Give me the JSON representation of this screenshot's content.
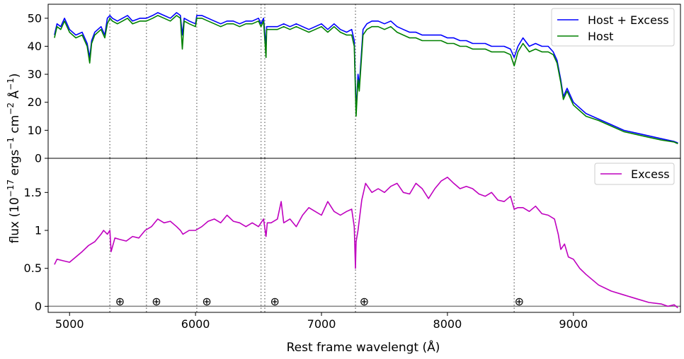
{
  "figure": {
    "ylabel": "flux (10$^{-17}$ ergs$^{-1}$ cm$^{-2}$ $\\AA^{-1}$)",
    "ylabel_parts": [
      "flux (10",
      "−17",
      " ergs",
      "−1",
      " cm",
      "−2",
      " Å",
      "−1",
      ")"
    ],
    "xlabel": "Rest frame wavelengt (Å)"
  },
  "colors": {
    "host_plus_excess": "#0000ff",
    "host": "#008000",
    "excess": "#bf00bf",
    "vline": "#808080",
    "zero_line": "#808080"
  },
  "chart_data": [
    {
      "type": "line",
      "panel": "top",
      "xlim": [
        4830,
        9850
      ],
      "ylim": [
        0,
        55
      ],
      "yticks": [
        0,
        10,
        20,
        30,
        40,
        50
      ],
      "ytick_labels": [
        "0",
        "10",
        "20",
        "30",
        "40",
        "50"
      ],
      "legend": {
        "placement": "top-right",
        "entries": [
          "Host + Excess",
          "Host"
        ]
      },
      "vlines": [
        5320,
        5610,
        6010,
        6520,
        6550,
        7270,
        8530
      ],
      "series": [
        {
          "name": "Host + Excess",
          "x": [
            4880,
            4900,
            4930,
            4960,
            5000,
            5050,
            5100,
            5140,
            5160,
            5175,
            5200,
            5250,
            5280,
            5300,
            5320,
            5340,
            5380,
            5420,
            5460,
            5500,
            5560,
            5610,
            5660,
            5700,
            5750,
            5800,
            5850,
            5880,
            5895,
            5910,
            5950,
            6000,
            6010,
            6050,
            6100,
            6150,
            6200,
            6250,
            6300,
            6350,
            6400,
            6450,
            6500,
            6520,
            6540,
            6560,
            6565,
            6600,
            6650,
            6700,
            6750,
            6800,
            6850,
            6900,
            6950,
            7000,
            7050,
            7100,
            7150,
            7200,
            7240,
            7260,
            7275,
            7290,
            7300,
            7330,
            7360,
            7400,
            7450,
            7500,
            7550,
            7600,
            7650,
            7700,
            7750,
            7800,
            7850,
            7900,
            7950,
            8000,
            8050,
            8100,
            8150,
            8200,
            8250,
            8300,
            8350,
            8400,
            8450,
            8500,
            8530,
            8560,
            8600,
            8650,
            8700,
            8750,
            8800,
            8840,
            8870,
            8900,
            8920,
            8950,
            9000,
            9050,
            9100,
            9200,
            9300,
            9400,
            9500,
            9600,
            9700,
            9800,
            9830
          ],
          "y": [
            44,
            48,
            47,
            50,
            46,
            44,
            45,
            41,
            36,
            42,
            45,
            47,
            44,
            50,
            51,
            50,
            49,
            50,
            51,
            49,
            50,
            50,
            51,
            52,
            51,
            50,
            52,
            51,
            44,
            50,
            49,
            48,
            51,
            51,
            50,
            49,
            48,
            49,
            49,
            48,
            49,
            49,
            50,
            48,
            50,
            40,
            47,
            47,
            47,
            48,
            47,
            48,
            47,
            46,
            47,
            48,
            46,
            48,
            46,
            45,
            46,
            42,
            17,
            30,
            26,
            46,
            48,
            49,
            49,
            48,
            49,
            47,
            46,
            45,
            45,
            44,
            44,
            44,
            44,
            43,
            43,
            42,
            42,
            41,
            41,
            41,
            40,
            40,
            40,
            39,
            36,
            40,
            43,
            40,
            41,
            40,
            40,
            38,
            35,
            28,
            22,
            25,
            20,
            18,
            16,
            14,
            12,
            10,
            9,
            8,
            7,
            6,
            5.5
          ]
        },
        {
          "name": "Host",
          "x": [
            4880,
            4900,
            4930,
            4960,
            5000,
            5050,
            5100,
            5140,
            5160,
            5175,
            5200,
            5250,
            5280,
            5300,
            5320,
            5340,
            5380,
            5420,
            5460,
            5500,
            5560,
            5610,
            5660,
            5700,
            5750,
            5800,
            5850,
            5880,
            5895,
            5910,
            5950,
            6000,
            6010,
            6050,
            6100,
            6150,
            6200,
            6250,
            6300,
            6350,
            6400,
            6450,
            6500,
            6520,
            6540,
            6560,
            6565,
            6600,
            6650,
            6700,
            6750,
            6800,
            6850,
            6900,
            6950,
            7000,
            7050,
            7100,
            7150,
            7200,
            7240,
            7260,
            7275,
            7290,
            7300,
            7330,
            7360,
            7400,
            7450,
            7500,
            7550,
            7600,
            7650,
            7700,
            7750,
            7800,
            7850,
            7900,
            7950,
            8000,
            8050,
            8100,
            8150,
            8200,
            8250,
            8300,
            8350,
            8400,
            8450,
            8500,
            8530,
            8560,
            8600,
            8650,
            8700,
            8750,
            8800,
            8840,
            8870,
            8900,
            8920,
            8950,
            9000,
            9050,
            9100,
            9200,
            9300,
            9400,
            9500,
            9600,
            9700,
            9800,
            9830
          ],
          "y": [
            43,
            47,
            46,
            49,
            45,
            43,
            44,
            40,
            34,
            41,
            44,
            46,
            43,
            48,
            50,
            49,
            48,
            49,
            50,
            48,
            49,
            49,
            50,
            51,
            50,
            49,
            51,
            50,
            39,
            49,
            48,
            47,
            50,
            50,
            49,
            48,
            47,
            48,
            48,
            47,
            48,
            48,
            49,
            47,
            49,
            36,
            46,
            46,
            46,
            47,
            46,
            47,
            46,
            45,
            46,
            47,
            45,
            47,
            45,
            44,
            44,
            40,
            15,
            28,
            24,
            44,
            46,
            47,
            47,
            46,
            47,
            45,
            44,
            43,
            43,
            42,
            42,
            42,
            42,
            41,
            41,
            40,
            40,
            39,
            39,
            39,
            38,
            38,
            38,
            37,
            33,
            38,
            41,
            38,
            39,
            38,
            38,
            37,
            34,
            27,
            21,
            24,
            19,
            17,
            15,
            13.5,
            11.5,
            9.5,
            8.5,
            7.5,
            6.5,
            5.8,
            5.2
          ]
        }
      ]
    },
    {
      "type": "line",
      "panel": "bottom",
      "xlim": [
        4830,
        9850
      ],
      "ylim": [
        -0.08,
        1.95
      ],
      "yticks": [
        0,
        0.5,
        1,
        1.5
      ],
      "ytick_labels": [
        "0",
        "0.5",
        "1",
        "1.5"
      ],
      "xticks": [
        5000,
        6000,
        7000,
        8000,
        9000
      ],
      "xtick_labels": [
        "5000",
        "6000",
        "7000",
        "8000",
        "9000"
      ],
      "legend": {
        "placement": "top-right",
        "entries": [
          "Excess"
        ]
      },
      "vlines": [
        5320,
        5610,
        6010,
        6520,
        6550,
        7270,
        8530
      ],
      "hline_y": 0,
      "telluric_markers": {
        "symbol": "⊕",
        "y": 0.07,
        "x": [
          5400,
          5690,
          6090,
          6630,
          7340,
          8570
        ]
      },
      "series": [
        {
          "name": "Excess",
          "x": [
            4880,
            4900,
            4950,
            5000,
            5050,
            5100,
            5150,
            5200,
            5250,
            5270,
            5300,
            5320,
            5330,
            5360,
            5400,
            5450,
            5500,
            5550,
            5600,
            5650,
            5700,
            5750,
            5800,
            5850,
            5880,
            5900,
            5950,
            6000,
            6050,
            6100,
            6150,
            6200,
            6250,
            6300,
            6350,
            6400,
            6450,
            6500,
            6540,
            6560,
            6570,
            6600,
            6650,
            6680,
            6700,
            6750,
            6800,
            6850,
            6900,
            6950,
            7000,
            7050,
            7100,
            7150,
            7200,
            7240,
            7260,
            7270,
            7275,
            7290,
            7320,
            7350,
            7400,
            7450,
            7500,
            7550,
            7600,
            7650,
            7700,
            7750,
            7800,
            7850,
            7900,
            7950,
            8000,
            8050,
            8100,
            8150,
            8200,
            8250,
            8300,
            8350,
            8400,
            8450,
            8500,
            8530,
            8560,
            8600,
            8650,
            8700,
            8750,
            8800,
            8850,
            8880,
            8900,
            8930,
            8960,
            9000,
            9050,
            9100,
            9150,
            9200,
            9300,
            9400,
            9500,
            9600,
            9700,
            9750,
            9800,
            9830
          ],
          "y": [
            0.55,
            0.62,
            0.6,
            0.58,
            0.65,
            0.72,
            0.8,
            0.85,
            0.95,
            1.0,
            0.95,
            1.0,
            0.72,
            0.9,
            0.88,
            0.86,
            0.92,
            0.9,
            1.0,
            1.05,
            1.15,
            1.1,
            1.12,
            1.05,
            1.0,
            0.95,
            1.0,
            1.0,
            1.05,
            1.12,
            1.15,
            1.1,
            1.2,
            1.12,
            1.1,
            1.05,
            1.1,
            1.05,
            1.15,
            0.92,
            1.1,
            1.1,
            1.15,
            1.38,
            1.1,
            1.15,
            1.05,
            1.2,
            1.3,
            1.25,
            1.2,
            1.38,
            1.25,
            1.2,
            1.25,
            1.28,
            1.05,
            0.5,
            0.85,
            1.0,
            1.4,
            1.62,
            1.5,
            1.55,
            1.5,
            1.58,
            1.62,
            1.5,
            1.48,
            1.62,
            1.55,
            1.42,
            1.55,
            1.65,
            1.7,
            1.62,
            1.55,
            1.58,
            1.55,
            1.48,
            1.45,
            1.5,
            1.4,
            1.38,
            1.45,
            1.28,
            1.3,
            1.3,
            1.25,
            1.32,
            1.22,
            1.2,
            1.15,
            0.95,
            0.75,
            0.82,
            0.65,
            0.62,
            0.5,
            0.42,
            0.35,
            0.28,
            0.2,
            0.15,
            0.1,
            0.05,
            0.03,
            0.0,
            0.02,
            -0.02
          ]
        }
      ]
    }
  ]
}
